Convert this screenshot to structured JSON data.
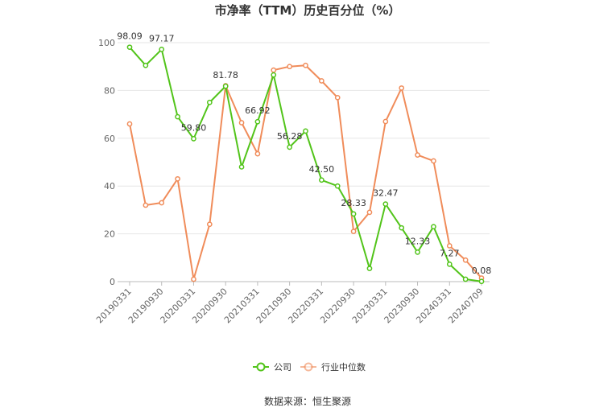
{
  "chart_data": {
    "type": "line",
    "title": "市净率（TTM）历史百分位（%）",
    "xlabel": "",
    "ylabel": "",
    "ylim": [
      0,
      100
    ],
    "yticks": [
      "0",
      "20",
      "40",
      "60",
      "80",
      "100"
    ],
    "grid": true,
    "legend_position": "bottom",
    "x": [
      "20190331",
      "20190630",
      "20190930",
      "20191231",
      "20200331",
      "20200630",
      "20200930",
      "20201231",
      "20210331",
      "20210630",
      "20210930",
      "20211231",
      "20220331",
      "20220630",
      "20220930",
      "20221231",
      "20230331",
      "20230630",
      "20230930",
      "20231231",
      "20240331",
      "20240630",
      "20240709"
    ],
    "xticks_shown": [
      "20190331",
      "20190930",
      "20200331",
      "20200930",
      "20210331",
      "20210930",
      "20220331",
      "20220930",
      "20230331",
      "20230930",
      "20240331",
      "20240709"
    ],
    "series": [
      {
        "name": "公司",
        "color": "#52c41a",
        "values": [
          98.09,
          90.5,
          97.17,
          69.0,
          59.8,
          75.0,
          81.78,
          48.0,
          66.92,
          86.5,
          56.28,
          63.0,
          42.5,
          40.0,
          28.33,
          5.5,
          32.47,
          22.5,
          12.33,
          23.0,
          7.27,
          1.0,
          0.08
        ],
        "labels": {
          "0": "98.09",
          "2": "97.17",
          "4": "59.80",
          "6": "81.78",
          "8": "66.92",
          "10": "56.28",
          "12": "42.50",
          "14": "28.33",
          "16": "32.47",
          "18": "12.33",
          "20": "7.27",
          "22": "0.08"
        }
      },
      {
        "name": "行业中位数",
        "color": "#f08c5a",
        "values": [
          66.0,
          32.0,
          33.0,
          43.0,
          1.0,
          24.0,
          82.0,
          66.5,
          53.5,
          88.5,
          90.0,
          90.5,
          84.0,
          77.0,
          21.0,
          29.0,
          67.0,
          81.0,
          53.0,
          50.5,
          15.0,
          9.0,
          1.5
        ]
      }
    ],
    "source_text": "数据来源：恒生聚源"
  }
}
